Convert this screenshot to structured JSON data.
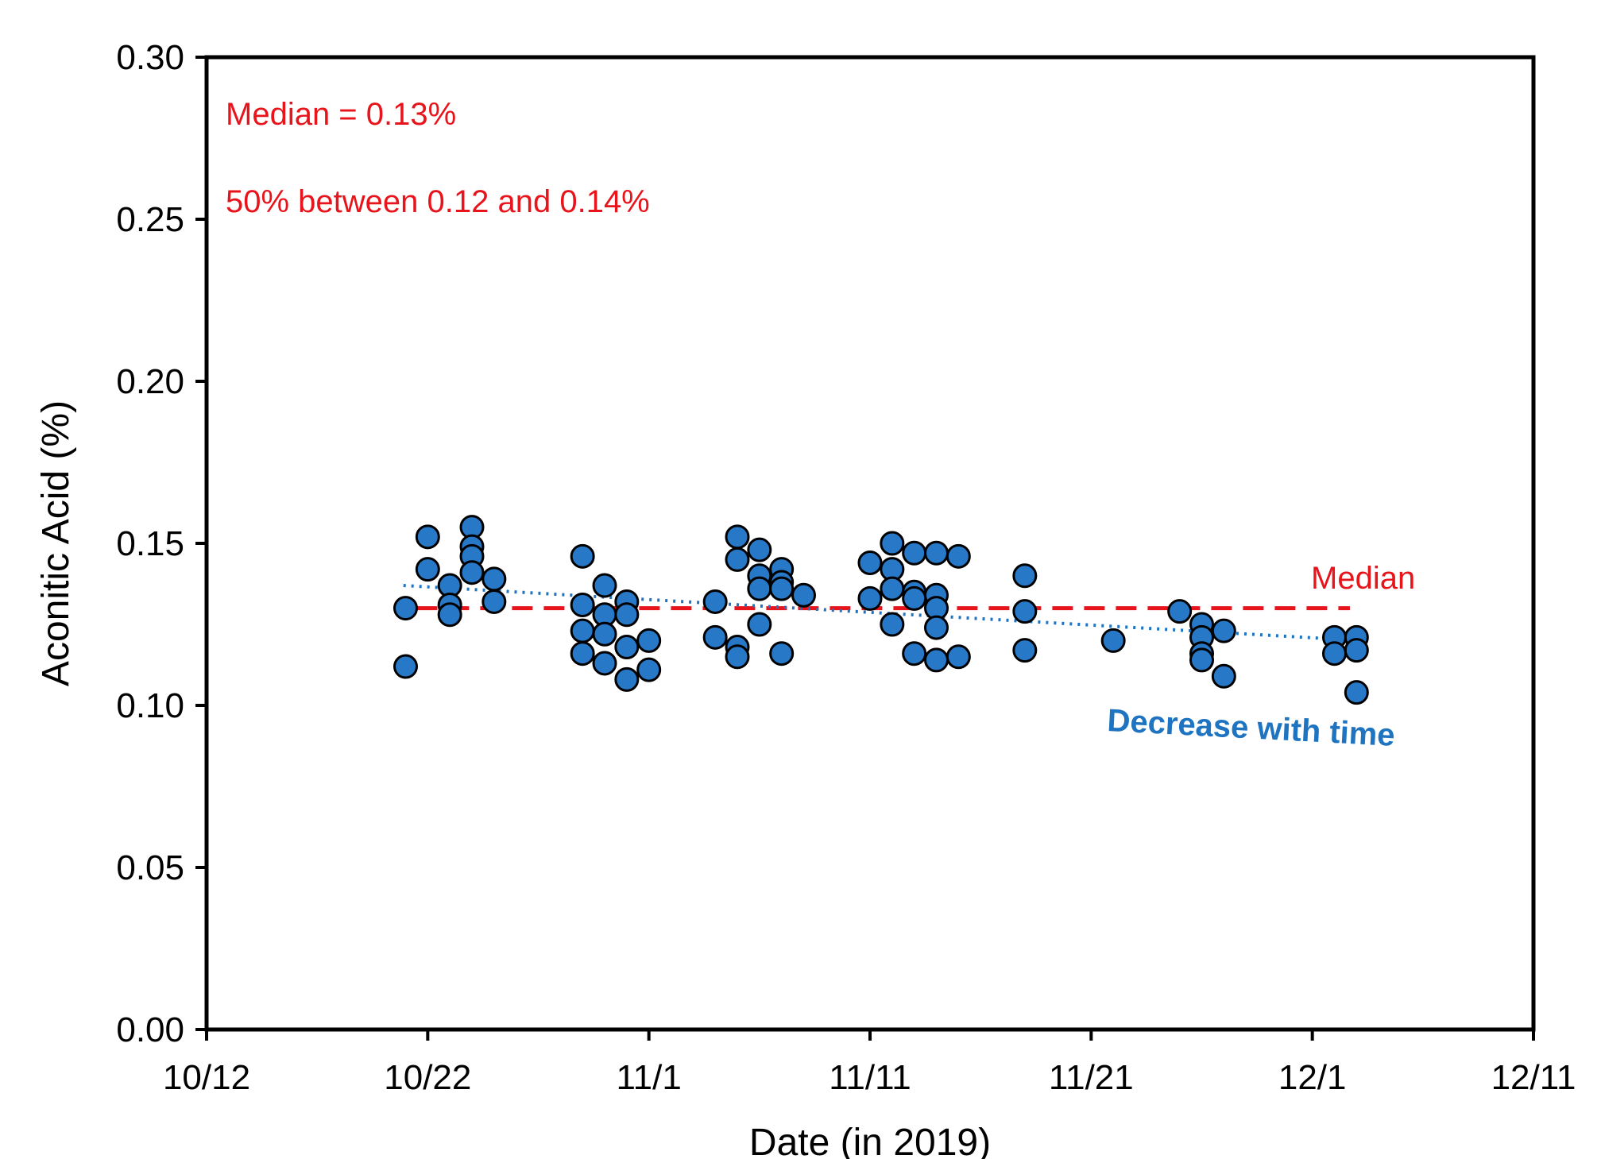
{
  "chart_data": {
    "type": "scatter",
    "xlabel": "Date (in 2019)",
    "ylabel": "Aconitic Acid (%)",
    "xlim": [
      0,
      60
    ],
    "ylim": [
      0,
      0.3
    ],
    "x_ticks": [
      {
        "x": 0,
        "label": "10/12"
      },
      {
        "x": 10,
        "label": "10/22"
      },
      {
        "x": 20,
        "label": "11/1"
      },
      {
        "x": 30,
        "label": "11/11"
      },
      {
        "x": 40,
        "label": "11/21"
      },
      {
        "x": 50,
        "label": "12/1"
      },
      {
        "x": 60,
        "label": "12/11"
      }
    ],
    "y_ticks": [
      {
        "y": 0,
        "label": "0.00"
      },
      {
        "y": 0.05,
        "label": "0.05"
      },
      {
        "y": 0.1,
        "label": "0.10"
      },
      {
        "y": 0.15,
        "label": "0.15"
      },
      {
        "y": 0.2,
        "label": "0.20"
      },
      {
        "y": 0.25,
        "label": "0.25"
      },
      {
        "y": 0.3,
        "label": "0.30"
      }
    ],
    "x_unit": "days after 10/12",
    "series": [
      {
        "name": "Aconitic Acid",
        "color": "#2878C8",
        "points": [
          {
            "x": 9,
            "y": 0.13
          },
          {
            "x": 9,
            "y": 0.112
          },
          {
            "x": 10,
            "y": 0.152
          },
          {
            "x": 10,
            "y": 0.142
          },
          {
            "x": 11,
            "y": 0.137
          },
          {
            "x": 11,
            "y": 0.131
          },
          {
            "x": 11,
            "y": 0.128
          },
          {
            "x": 12,
            "y": 0.155
          },
          {
            "x": 12,
            "y": 0.149
          },
          {
            "x": 12,
            "y": 0.146
          },
          {
            "x": 12,
            "y": 0.141
          },
          {
            "x": 13,
            "y": 0.139
          },
          {
            "x": 13,
            "y": 0.132
          },
          {
            "x": 17,
            "y": 0.146
          },
          {
            "x": 17,
            "y": 0.131
          },
          {
            "x": 17,
            "y": 0.123
          },
          {
            "x": 17,
            "y": 0.116
          },
          {
            "x": 18,
            "y": 0.137
          },
          {
            "x": 18,
            "y": 0.128
          },
          {
            "x": 18,
            "y": 0.122
          },
          {
            "x": 18,
            "y": 0.113
          },
          {
            "x": 19,
            "y": 0.132
          },
          {
            "x": 19,
            "y": 0.128
          },
          {
            "x": 19,
            "y": 0.118
          },
          {
            "x": 19,
            "y": 0.108
          },
          {
            "x": 20,
            "y": 0.12
          },
          {
            "x": 20,
            "y": 0.111
          },
          {
            "x": 23,
            "y": 0.132
          },
          {
            "x": 23,
            "y": 0.121
          },
          {
            "x": 24,
            "y": 0.152
          },
          {
            "x": 24,
            "y": 0.145
          },
          {
            "x": 24,
            "y": 0.118
          },
          {
            "x": 24,
            "y": 0.115
          },
          {
            "x": 25,
            "y": 0.148
          },
          {
            "x": 25,
            "y": 0.14
          },
          {
            "x": 25,
            "y": 0.136
          },
          {
            "x": 25,
            "y": 0.125
          },
          {
            "x": 26,
            "y": 0.142
          },
          {
            "x": 26,
            "y": 0.138
          },
          {
            "x": 26,
            "y": 0.136
          },
          {
            "x": 26,
            "y": 0.116
          },
          {
            "x": 27,
            "y": 0.134
          },
          {
            "x": 30,
            "y": 0.144
          },
          {
            "x": 30,
            "y": 0.133
          },
          {
            "x": 31,
            "y": 0.15
          },
          {
            "x": 31,
            "y": 0.142
          },
          {
            "x": 31,
            "y": 0.136
          },
          {
            "x": 31,
            "y": 0.125
          },
          {
            "x": 32,
            "y": 0.147
          },
          {
            "x": 32,
            "y": 0.135
          },
          {
            "x": 32,
            "y": 0.133
          },
          {
            "x": 32,
            "y": 0.116
          },
          {
            "x": 33,
            "y": 0.147
          },
          {
            "x": 33,
            "y": 0.134
          },
          {
            "x": 33,
            "y": 0.13
          },
          {
            "x": 33,
            "y": 0.124
          },
          {
            "x": 33,
            "y": 0.114
          },
          {
            "x": 34,
            "y": 0.146
          },
          {
            "x": 34,
            "y": 0.115
          },
          {
            "x": 37,
            "y": 0.14
          },
          {
            "x": 37,
            "y": 0.129
          },
          {
            "x": 37,
            "y": 0.117
          },
          {
            "x": 41,
            "y": 0.12
          },
          {
            "x": 44,
            "y": 0.129
          },
          {
            "x": 45,
            "y": 0.125
          },
          {
            "x": 45,
            "y": 0.121
          },
          {
            "x": 45,
            "y": 0.116
          },
          {
            "x": 45,
            "y": 0.114
          },
          {
            "x": 46,
            "y": 0.123
          },
          {
            "x": 46,
            "y": 0.109
          },
          {
            "x": 51,
            "y": 0.121
          },
          {
            "x": 51,
            "y": 0.116
          },
          {
            "x": 52,
            "y": 0.121
          },
          {
            "x": 52,
            "y": 0.117
          },
          {
            "x": 52,
            "y": 0.104
          }
        ]
      }
    ],
    "reference_lines": [
      {
        "name": "Median",
        "kind": "median",
        "x_start": 9.5,
        "x_end": 51.7,
        "y_start": 0.13,
        "y_end": 0.13,
        "color": "#E8141B",
        "dash": "dashed"
      },
      {
        "name": "Trend",
        "kind": "trend",
        "x_start": 8.9,
        "x_end": 52.2,
        "y_start": 0.137,
        "y_end": 0.12,
        "color": "#1F74C1",
        "dash": "dotted"
      }
    ],
    "annotations": [
      {
        "text": "Median = 0.13%",
        "color": "#E8141B"
      },
      {
        "text": "50% between 0.12 and 0.14%",
        "color": "#E8141B"
      },
      {
        "text": "Median",
        "color": "#E8141B"
      },
      {
        "text": "Decrease with time",
        "color": "#1F74C1"
      }
    ]
  }
}
